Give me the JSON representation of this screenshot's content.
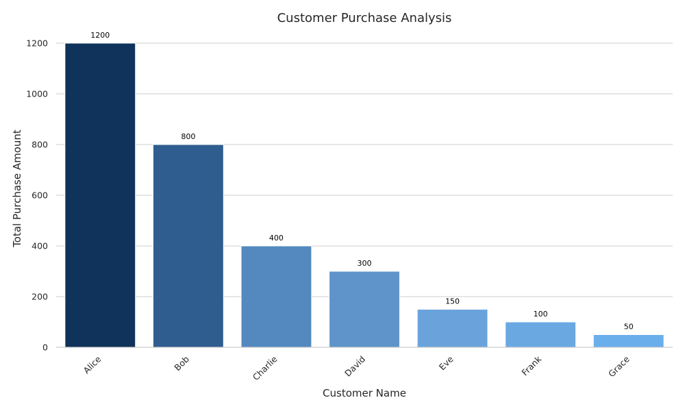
{
  "chart_data": {
    "type": "bar",
    "title": "Customer Purchase Analysis",
    "xlabel": "Customer Name",
    "ylabel": "Total Purchase Amount",
    "categories": [
      "Alice",
      "Bob",
      "Charlie",
      "David",
      "Eve",
      "Frank",
      "Grace"
    ],
    "values": [
      1200,
      800,
      400,
      300,
      150,
      100,
      50
    ],
    "value_labels": [
      "1200",
      "800",
      "400",
      "300",
      "150",
      "100",
      "50"
    ],
    "bar_colors": [
      "#0f335a",
      "#2f5d8f",
      "#5389bf",
      "#5e94c9",
      "#6aa3dc",
      "#6aa8e2",
      "#6aaeec"
    ],
    "ylim": [
      0,
      1200
    ],
    "yticks": [
      0,
      200,
      400,
      600,
      800,
      1000,
      1200
    ],
    "ytick_labels": [
      "0",
      "200",
      "400",
      "600",
      "800",
      "1000",
      "1200"
    ],
    "grid": "horizontal",
    "xtick_rotation": -45
  }
}
